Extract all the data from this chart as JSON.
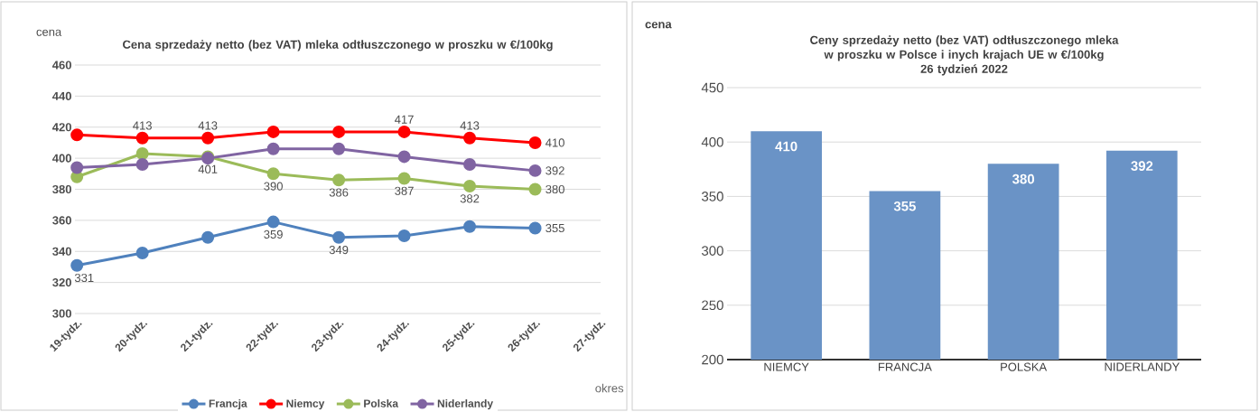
{
  "chart_data": [
    {
      "type": "line",
      "title": "Cena sprzedaży netto (bez VAT) mleka odtłuszczonego w proszku w €/100kg",
      "xlabel": "okres",
      "ylabel": "cena",
      "categories": [
        "19-tydz.",
        "20-tydz.",
        "21-tydz.",
        "22-tydz.",
        "23-tydz.",
        "24-tydz.",
        "25-tydz.",
        "26-tydz.",
        "27-tydz."
      ],
      "series": [
        {
          "name": "Francja",
          "color": "#4f81bd",
          "values": [
            331,
            339,
            349,
            359,
            349,
            350,
            356,
            355,
            null
          ],
          "value_labels": [
            "331",
            null,
            null,
            "359",
            "349",
            null,
            null,
            "355",
            null
          ]
        },
        {
          "name": "Niemcy",
          "color": "#ff0000",
          "values": [
            415,
            413,
            413,
            417,
            417,
            417,
            413,
            410,
            null
          ],
          "value_labels": [
            null,
            "413",
            "413",
            null,
            null,
            "417",
            "413",
            "410",
            null
          ]
        },
        {
          "name": "Polska",
          "color": "#9bbb59",
          "values": [
            388,
            403,
            401,
            390,
            386,
            387,
            382,
            380,
            null
          ],
          "value_labels": [
            null,
            null,
            "401",
            "390",
            "386",
            "387",
            "382",
            "380",
            null
          ]
        },
        {
          "name": "Niderlandy",
          "color": "#8064a2",
          "values": [
            394,
            396,
            400,
            406,
            406,
            401,
            396,
            392,
            null
          ],
          "value_labels": [
            null,
            null,
            null,
            null,
            null,
            null,
            null,
            "392",
            null
          ]
        }
      ],
      "ylim": [
        300,
        460
      ],
      "yticks": [
        300,
        320,
        340,
        360,
        380,
        400,
        420,
        440,
        460
      ],
      "grid": "y",
      "legend": "bottom",
      "marker": "circle"
    },
    {
      "type": "bar",
      "title": "Ceny sprzedaży netto (bez VAT) odtłuszczonego mleka w proszku w Polsce i inych krajach UE w €/100kg",
      "subtitle": "26 tydzień 2022",
      "ylabel": "cena",
      "categories": [
        "NIEMCY",
        "FRANCJA",
        "POLSKA",
        "NIDERLANDY"
      ],
      "values": [
        410,
        355,
        380,
        392
      ],
      "color": "#6a93c6",
      "ylim": [
        200,
        450
      ],
      "yticks": [
        200,
        250,
        300,
        350,
        400,
        450
      ],
      "grid": "y",
      "data_labels": true
    }
  ]
}
